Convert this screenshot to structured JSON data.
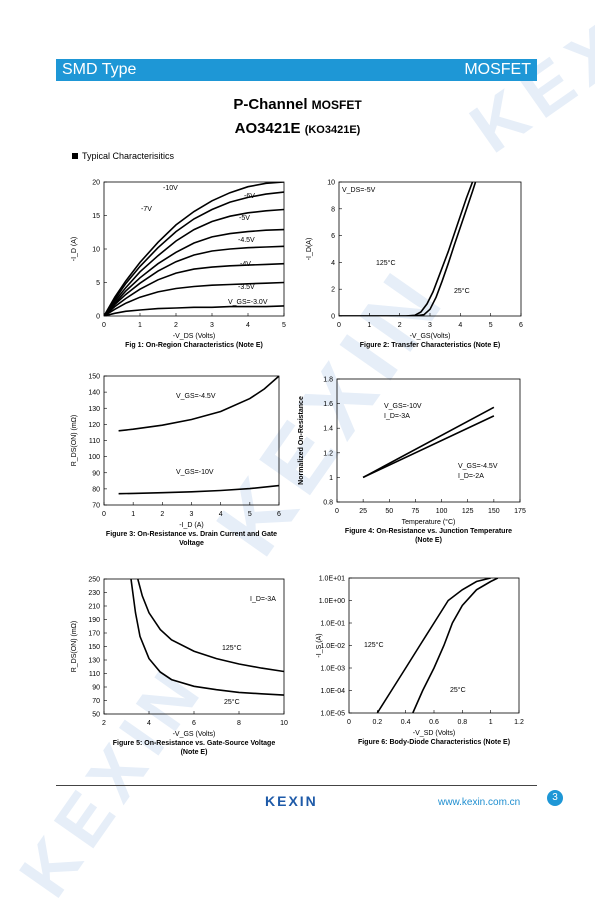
{
  "header": {
    "left_label": "SMD Type",
    "right_label": "MOSFET"
  },
  "title": {
    "line1_main": "P-Channel",
    "line1_small": "MOSFET",
    "line2_main": "AO3421E",
    "line2_small": "(KO3421E)"
  },
  "section": {
    "label": "Typical  Characterisitics"
  },
  "footer": {
    "logo": "KEXIN",
    "url": "www.kexin.com.cn",
    "page": "3"
  },
  "watermark": "KEXIN",
  "chart_data": [
    {
      "type": "line",
      "caption": "Fig 1: On-Region Characteristics (Note E)",
      "xlabel": "-V_DS (Volts)",
      "ylabel": "-I_D (A)",
      "xlim": [
        0,
        5
      ],
      "ylim": [
        0,
        20
      ],
      "xticks": [
        "0",
        "1",
        "2",
        "3",
        "4",
        "5"
      ],
      "yticks": [
        "0",
        "5",
        "10",
        "15",
        "20"
      ],
      "series": [
        {
          "name": "-10V",
          "x": [
            0,
            0.3,
            0.6,
            1,
            1.5,
            2,
            2.5,
            3,
            3.5,
            4,
            4.5,
            5
          ],
          "y": [
            0,
            2.8,
            5.2,
            8,
            11,
            13.6,
            15.6,
            17.2,
            18.4,
            19.3,
            19.8,
            20
          ]
        },
        {
          "name": "-7V",
          "x": [
            0,
            0.3,
            0.6,
            1,
            1.5,
            2,
            2.5,
            3,
            3.5,
            4,
            4.5,
            5
          ],
          "y": [
            0,
            2.5,
            4.8,
            7.4,
            10.2,
            12.6,
            14.5,
            15.9,
            17,
            17.7,
            18.2,
            18.5
          ]
        },
        {
          "name": "-6V",
          "x": [
            0,
            0.3,
            0.6,
            1,
            1.5,
            2,
            2.5,
            3,
            3.5,
            4,
            4.5,
            5
          ],
          "y": [
            0,
            2.2,
            4.2,
            6.6,
            9,
            11.2,
            12.9,
            14.1,
            14.9,
            15.4,
            15.7,
            15.9
          ]
        },
        {
          "name": "-5V",
          "x": [
            0,
            0.3,
            0.6,
            1,
            1.5,
            2,
            2.5,
            3,
            3.5,
            4,
            4.5,
            5
          ],
          "y": [
            0,
            1.9,
            3.7,
            5.7,
            7.8,
            9.5,
            10.9,
            11.8,
            12.3,
            12.6,
            12.8,
            12.9
          ]
        },
        {
          "name": "-4.5V",
          "x": [
            0,
            0.3,
            0.6,
            1,
            1.5,
            2,
            2.5,
            3,
            3.5,
            4,
            4.5,
            5
          ],
          "y": [
            0,
            1.7,
            3.2,
            4.9,
            6.7,
            8.1,
            9.1,
            9.7,
            10,
            10.2,
            10.3,
            10.4
          ]
        },
        {
          "name": "-4V",
          "x": [
            0,
            0.3,
            0.6,
            1,
            1.5,
            2,
            2.5,
            3,
            3.5,
            4,
            4.5,
            5
          ],
          "y": [
            0,
            1.4,
            2.6,
            4,
            5.4,
            6.4,
            7,
            7.3,
            7.5,
            7.6,
            7.7,
            7.8
          ]
        },
        {
          "name": "-3.5V",
          "x": [
            0,
            0.3,
            0.6,
            1,
            1.5,
            2,
            2.5,
            3,
            3.5,
            4,
            4.5,
            5
          ],
          "y": [
            0,
            1,
            1.9,
            2.8,
            3.6,
            4.1,
            4.4,
            4.6,
            4.7,
            4.8,
            4.9,
            5
          ]
        },
        {
          "name": "V_GS=-3.0V",
          "x": [
            0,
            0.3,
            0.6,
            1,
            1.5,
            2,
            2.5,
            3,
            3.5,
            4,
            4.5,
            5
          ],
          "y": [
            0,
            0.4,
            0.7,
            0.9,
            1.1,
            1.2,
            1.3,
            1.3,
            1.4,
            1.4,
            1.4,
            1.5
          ]
        }
      ],
      "annotations": [
        "-10V",
        "-7V",
        "-6V",
        "-5V",
        "-4.5V",
        "-4V",
        "-3.5V",
        "V_GS=-3.0V"
      ]
    },
    {
      "type": "line",
      "caption": "Figure 2: Transfer Characteristics (Note E)",
      "xlabel": "-V_GS(Volts)",
      "ylabel": "-I_D(A)",
      "xlim": [
        0,
        6
      ],
      "ylim": [
        0,
        10
      ],
      "xticks": [
        "0",
        "1",
        "2",
        "3",
        "4",
        "5",
        "6"
      ],
      "yticks": [
        "0",
        "2",
        "4",
        "6",
        "8",
        "10"
      ],
      "series": [
        {
          "name": "125°C",
          "x": [
            0,
            2.2,
            2.5,
            2.7,
            2.9,
            3.1,
            3.3,
            3.6,
            3.9,
            4.2,
            4.4
          ],
          "y": [
            0,
            0,
            0.05,
            0.3,
            0.9,
            1.8,
            3,
            4.8,
            6.8,
            8.8,
            10
          ]
        },
        {
          "name": "25°C",
          "x": [
            0,
            2.5,
            2.8,
            3,
            3.2,
            3.4,
            3.6,
            3.8,
            4.1,
            4.4,
            4.5
          ],
          "y": [
            0,
            0,
            0.1,
            0.5,
            1.4,
            2.6,
            3.9,
            5.3,
            7.3,
            9.3,
            10
          ]
        }
      ],
      "annotations": [
        "V_DS=-5V",
        "125°C",
        "25°C"
      ]
    },
    {
      "type": "line",
      "caption": "Figure 3: On-Resistance vs. Drain Current and Gate Voltage",
      "xlabel": "-I_D (A)",
      "ylabel": "R_DS(ON) (mΩ)",
      "xlim": [
        0,
        6
      ],
      "ylim": [
        70,
        150
      ],
      "xticks": [
        "0",
        "1",
        "2",
        "3",
        "4",
        "5",
        "6"
      ],
      "yticks": [
        "70",
        "80",
        "90",
        "100",
        "110",
        "120",
        "130",
        "140",
        "150"
      ],
      "series": [
        {
          "name": "V_GS=-4.5V",
          "x": [
            0.5,
            1,
            2,
            3,
            4,
            5,
            5.5,
            6
          ],
          "y": [
            116,
            117,
            119.5,
            123,
            128,
            136,
            142,
            150
          ]
        },
        {
          "name": "V_GS=-10V",
          "x": [
            0.5,
            1,
            2,
            3,
            4,
            5,
            6
          ],
          "y": [
            77,
            77.2,
            77.6,
            78.2,
            79,
            80.2,
            82
          ]
        }
      ],
      "annotations": [
        "V_GS=-4.5V",
        "V_GS=-10V"
      ]
    },
    {
      "type": "line",
      "caption": "Figure 4: On-Resistance vs. Junction Temperature (Note E)",
      "xlabel": "Temperature (°C)",
      "ylabel": "Normalized On-Resistance",
      "xlim": [
        0,
        175
      ],
      "ylim": [
        0.8,
        1.8
      ],
      "xticks": [
        "0",
        "25",
        "50",
        "75",
        "100",
        "125",
        "150",
        "175"
      ],
      "yticks": [
        "0.8",
        "1",
        "1.2",
        "1.4",
        "1.6",
        "1.8"
      ],
      "series": [
        {
          "name": "V_GS=-10V, I_D=-3A",
          "x": [
            25,
            150
          ],
          "y": [
            1.0,
            1.57
          ]
        },
        {
          "name": "V_GS=-4.5V, I_D=-2A",
          "x": [
            25,
            150
          ],
          "y": [
            1.0,
            1.5
          ]
        }
      ],
      "annotations": [
        "V_GS=-10V",
        "I_D=-3A",
        "V_GS=-4.5V",
        "I_D=-2A"
      ]
    },
    {
      "type": "line",
      "caption": "Figure 5: On-Resistance vs. Gate-Source Voltage (Note E)",
      "xlabel": "-V_GS (Volts)",
      "ylabel": "R_DS(ON) (mΩ)",
      "xlim": [
        2,
        10
      ],
      "ylim": [
        50,
        250
      ],
      "xticks": [
        "2",
        "4",
        "6",
        "8",
        "10"
      ],
      "yticks": [
        "50",
        "70",
        "90",
        "110",
        "130",
        "150",
        "170",
        "190",
        "210",
        "230",
        "250"
      ],
      "series": [
        {
          "name": "125°C",
          "x": [
            3.5,
            3.7,
            4,
            4.5,
            5,
            6,
            7,
            8,
            9,
            10
          ],
          "y": [
            250,
            225,
            200,
            175,
            160,
            143,
            132,
            124,
            118,
            113
          ]
        },
        {
          "name": "25°C",
          "x": [
            3.2,
            3.4,
            3.6,
            4,
            4.5,
            5,
            6,
            7,
            8,
            9,
            10
          ],
          "y": [
            250,
            200,
            165,
            132,
            112,
            101,
            91,
            86,
            82,
            80,
            78
          ]
        }
      ],
      "annotations": [
        "I_D=-3A",
        "125°C",
        "25°C"
      ]
    },
    {
      "type": "line",
      "caption": "Figure 6: Body-Diode Characteristics (Note E)",
      "xlabel": "-V_SD (Volts)",
      "ylabel": "-I_S (A)",
      "xlim": [
        0,
        1.2
      ],
      "ylim_log10": [
        -5,
        1
      ],
      "xticks": [
        "0",
        "0.2",
        "0.4",
        "0.6",
        "0.8",
        "1",
        "1.2"
      ],
      "yticks": [
        "1.0E-05",
        "1.0E-04",
        "1.0E-03",
        "1.0E-02",
        "1.0E-01",
        "1.0E+00",
        "1.0E+01"
      ],
      "series": [
        {
          "name": "125°C",
          "x": [
            0.2,
            0.3,
            0.4,
            0.5,
            0.6,
            0.7,
            0.8,
            0.9,
            1.0
          ],
          "y": [
            1e-05,
            0.0001,
            0.001,
            0.01,
            0.1,
            1,
            3,
            7,
            10
          ]
        },
        {
          "name": "25°C",
          "x": [
            0.45,
            0.52,
            0.6,
            0.67,
            0.73,
            0.8,
            0.9,
            1.0,
            1.05
          ],
          "y": [
            1e-05,
            0.0001,
            0.001,
            0.01,
            0.1,
            0.6,
            3,
            7,
            10
          ]
        }
      ],
      "annotations": [
        "125°C",
        "25°C"
      ]
    }
  ]
}
